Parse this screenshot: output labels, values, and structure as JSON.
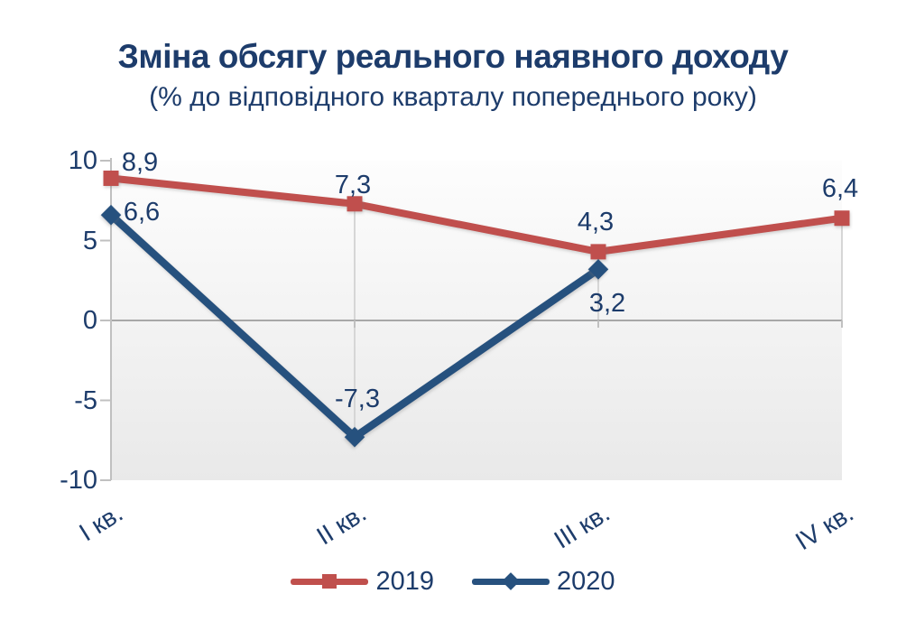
{
  "title": "Зміна обсягу реального наявного доходу",
  "subtitle": "(% до відповідного кварталу попереднього року)",
  "colors": {
    "text": "#1d3c6b",
    "series_2019": "#C0504D",
    "series_2020": "#27517E",
    "axis": "#c0c0c0",
    "zero_line": "#a8a8a8",
    "drop_line": "#d6d6d6",
    "plot_bg_top": "#fdfdfd",
    "plot_bg_bottom": "#e9e9e9"
  },
  "chart_data": {
    "type": "line",
    "categories": [
      "I кв.",
      "II кв.",
      "III кв.",
      "IV кв."
    ],
    "series": [
      {
        "name": "2019",
        "marker": "square",
        "color": "#C0504D",
        "values": [
          8.9,
          7.3,
          4.3,
          6.4
        ],
        "labels": [
          "8,9",
          "7,3",
          "4,3",
          "6,4"
        ]
      },
      {
        "name": "2020",
        "marker": "diamond",
        "color": "#27517E",
        "values": [
          6.6,
          -7.3,
          3.2,
          null
        ],
        "labels": [
          "6,6",
          "-7,3",
          "3,2"
        ]
      }
    ],
    "ylim": [
      -10,
      10
    ],
    "yticks": [
      10,
      5,
      0,
      -5,
      -10
    ],
    "ytick_labels": [
      "10",
      "5",
      "0",
      "-5",
      "-10"
    ],
    "xlabel": "",
    "ylabel": "",
    "grid": "zero-line only, with vertical drop lines from points to category axis",
    "legend_position": "bottom"
  }
}
